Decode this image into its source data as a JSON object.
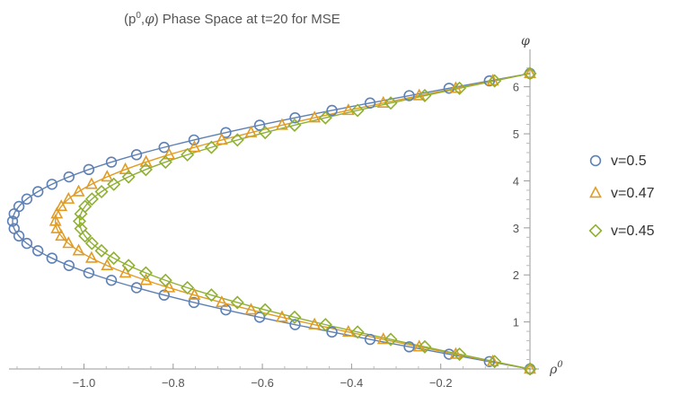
{
  "chart_data": {
    "type": "scatter",
    "title": {
      "prefix": "(",
      "rho": "p",
      "rho_sup": "0",
      "comma": ",",
      "phi": "φ",
      "suffix": ") Phase Space at t=20 for MSE"
    },
    "xlabel": {
      "base": "ρ",
      "sup": "0"
    },
    "ylabel": "φ",
    "xlim": [
      -1.16,
      0.0
    ],
    "ylim": [
      0,
      6.7
    ],
    "x_ticks": [
      -1.0,
      -0.8,
      -0.6,
      -0.4,
      -0.2
    ],
    "x_tick_labels": [
      "−1.0",
      "−0.8",
      "−0.6",
      "−0.4",
      "−0.2"
    ],
    "y_ticks": [
      1,
      2,
      3,
      4,
      5,
      6
    ],
    "y_tick_labels": [
      "1",
      "2",
      "3",
      "4",
      "5",
      "6"
    ],
    "legend_position": "right",
    "series": [
      {
        "name": "v=0.5",
        "marker": "circle",
        "color": "#5E81B5",
        "amplitude": 1.16,
        "offset": 0.0,
        "n_points": 41
      },
      {
        "name": "v=0.47",
        "marker": "triangle",
        "color": "#E19C24",
        "amplitude": 1.064,
        "offset": 0.0,
        "n_points": 41
      },
      {
        "name": "v=0.45",
        "marker": "diamond",
        "color": "#8FB032",
        "amplitude": 1.01,
        "offset": 0.0,
        "n_points": 41
      }
    ]
  }
}
